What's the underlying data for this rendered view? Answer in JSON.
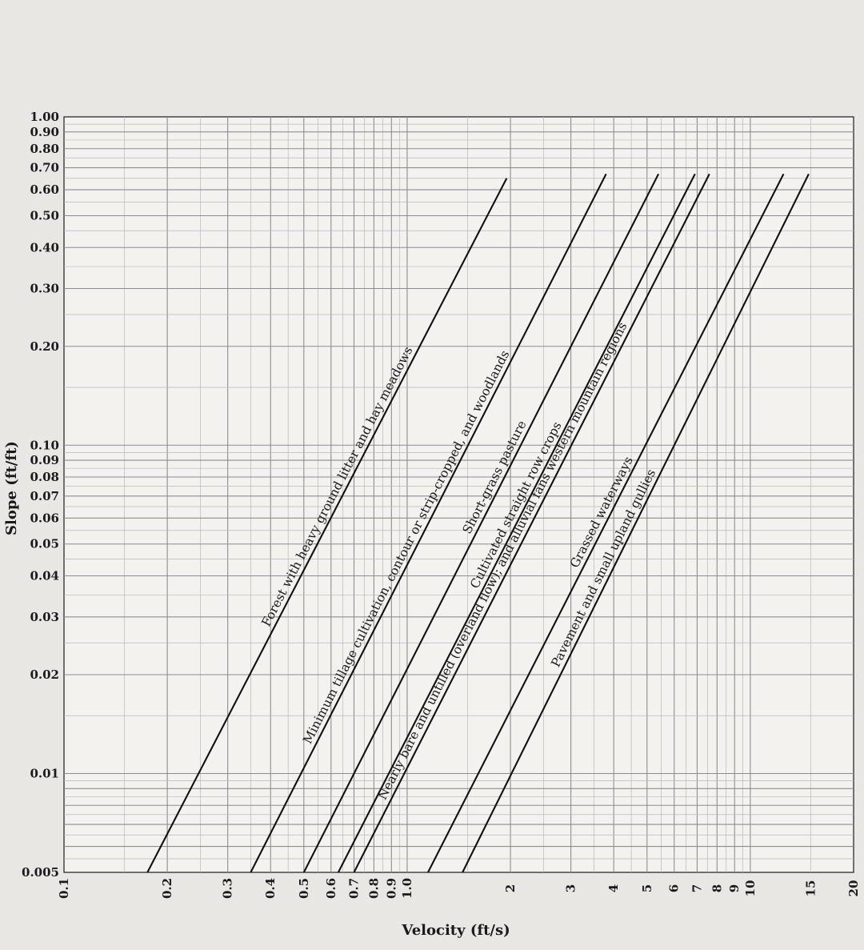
{
  "chart_data": {
    "type": "line",
    "title": "",
    "xlabel": "Velocity (ft/s)",
    "ylabel": "Slope (ft/ft)",
    "x_scale": "log",
    "y_scale": "log",
    "xlim": [
      0.1,
      20
    ],
    "ylim": [
      0.005,
      1.0
    ],
    "grid": true,
    "y_tick_labels": [
      "0.005",
      "0.01",
      "0.02",
      "0.03",
      "0.04",
      "0.05",
      "0.06",
      "0.07",
      "0.08",
      "0.09",
      "0.10",
      "0.20",
      "0.30",
      "0.40",
      "0.50",
      "0.60",
      "0.70",
      "0.80",
      "0.90",
      "1.00"
    ],
    "x_tick_labels": [
      "0.1",
      "0.2",
      "0.3",
      "0.4",
      "0.5",
      "0.6",
      "0.7",
      "0.8",
      "0.9",
      "1.0",
      "2",
      "3",
      "4",
      "5",
      "6",
      "7",
      "8",
      "9",
      "10",
      "15",
      "20"
    ],
    "series": [
      {
        "name": "Forest with heavy ground litter and hay meadows",
        "x": [
          0.175,
          1.95
        ],
        "y": [
          0.005,
          0.65
        ]
      },
      {
        "name": "Minimum tillage cultivation, contour or strip-cropped, and woodlands",
        "x": [
          0.35,
          3.8
        ],
        "y": [
          0.005,
          0.67
        ]
      },
      {
        "name": "Short-grass pasture",
        "x": [
          0.5,
          5.4
        ],
        "y": [
          0.005,
          0.67
        ]
      },
      {
        "name": "Cultivated straight row crops",
        "x": [
          0.63,
          6.9
        ],
        "y": [
          0.005,
          0.67
        ]
      },
      {
        "name": "Nearly bare and untilled (overland flow); and alluvial fans western mountain regions",
        "x": [
          0.7,
          7.6
        ],
        "y": [
          0.005,
          0.67
        ]
      },
      {
        "name": "Grassed waterways",
        "x": [
          1.15,
          12.5
        ],
        "y": [
          0.005,
          0.67
        ]
      },
      {
        "name": "Pavement and small upland gullies",
        "x": [
          1.45,
          14.8
        ],
        "y": [
          0.005,
          0.67
        ]
      }
    ]
  }
}
